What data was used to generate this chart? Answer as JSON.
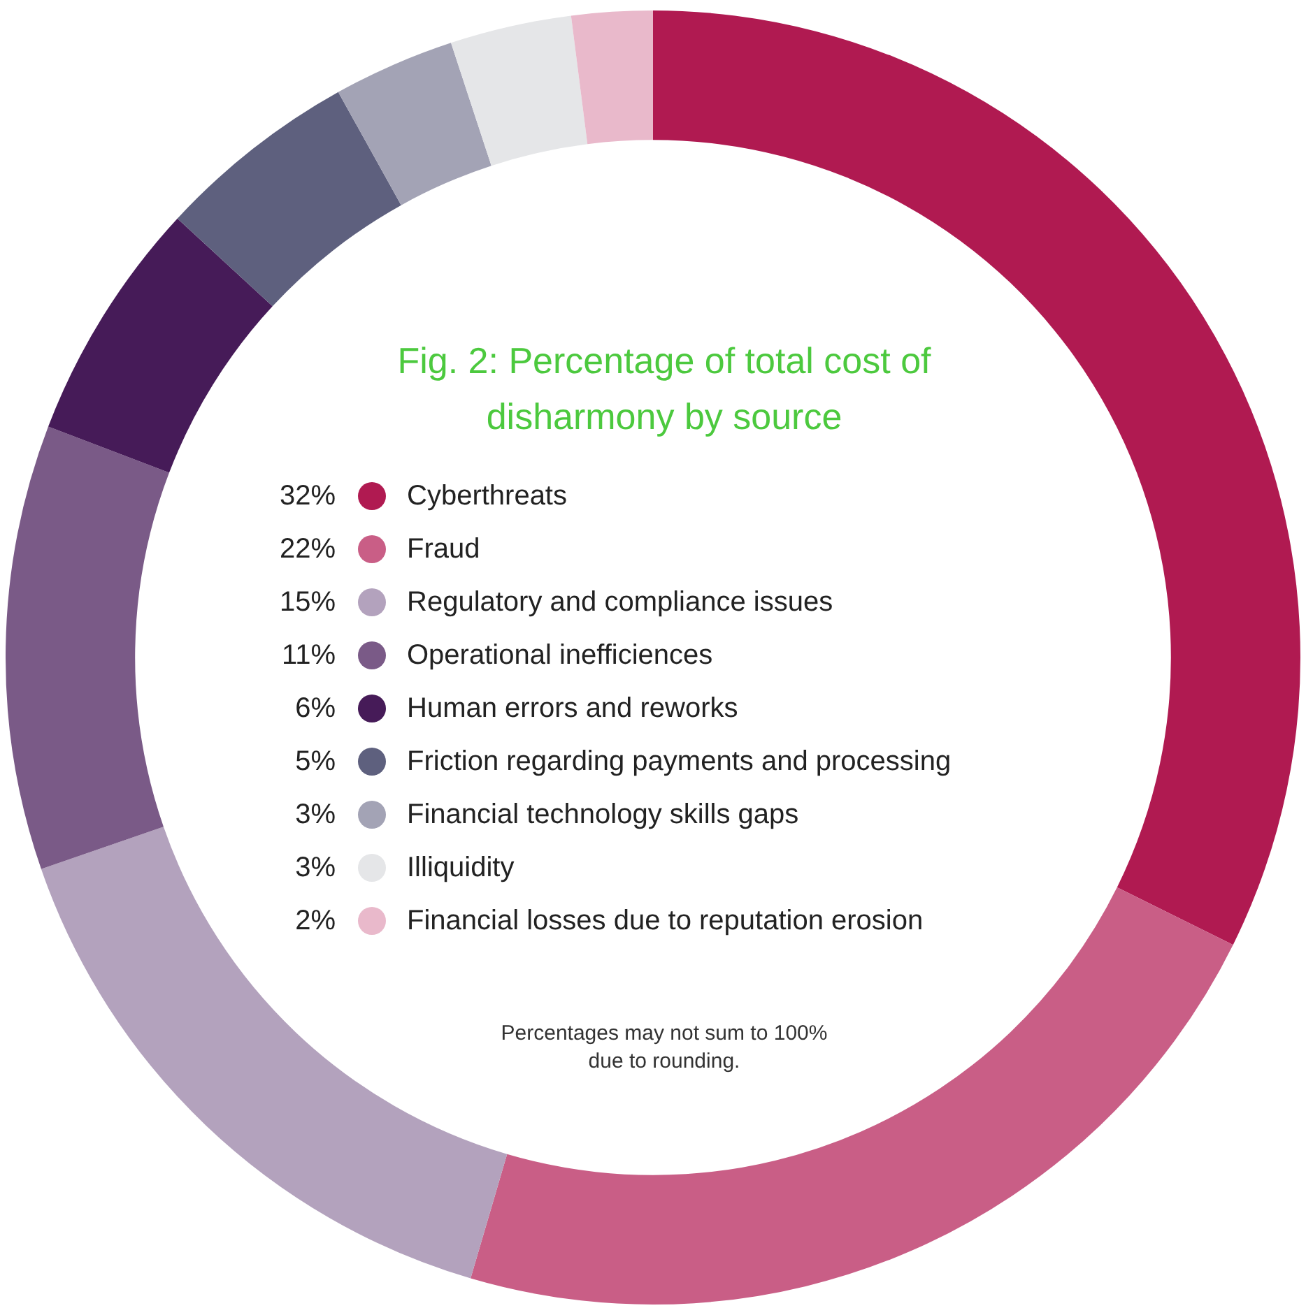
{
  "chart_data": {
    "type": "donut",
    "title": "Fig. 2:  Percentage of total cost of disharmony by source",
    "categories": [
      "Cyberthreats",
      "Fraud",
      "Regulatory and compliance issues",
      "Operational inefficiences",
      "Human errors and reworks",
      "Friction regarding payments and processing",
      "Financial technology skills gaps",
      "Illiquidity",
      "Financial losses due to reputation erosion"
    ],
    "values": [
      32,
      22,
      15,
      11,
      6,
      5,
      3,
      3,
      2
    ],
    "value_labels": [
      "32%",
      "22%",
      "15%",
      "11%",
      "6%",
      "5%",
      "3%",
      "3%",
      "2%"
    ],
    "colors": [
      "#b01a51",
      "#c95e86",
      "#b3a2bd",
      "#7a5a87",
      "#461b58",
      "#5e607e",
      "#a3a3b5",
      "#e5e6e8",
      "#e9b9cb"
    ],
    "legend": "center",
    "annotations": [
      "Percentages may not sum to 100% due to rounding."
    ]
  }
}
